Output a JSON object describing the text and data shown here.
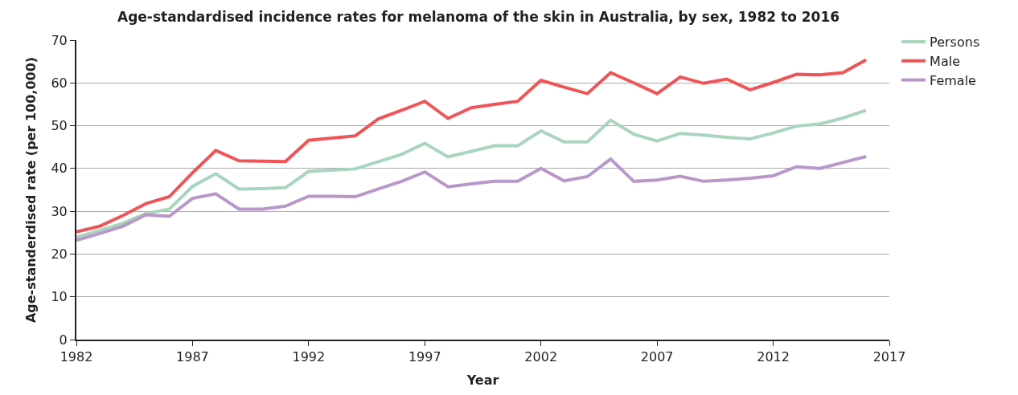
{
  "chart_data": {
    "type": "line",
    "title": "Age-standardised incidence rates for melanoma of the skin in Australia, by sex, 1982 to 2016",
    "xlabel": "Year",
    "ylabel": "Age-standerdised rate (per 100,000)",
    "x": [
      1982,
      1983,
      1984,
      1985,
      1986,
      1987,
      1988,
      1989,
      1990,
      1991,
      1992,
      1993,
      1994,
      1995,
      1996,
      1997,
      1998,
      1999,
      2000,
      2001,
      2002,
      2003,
      2004,
      2005,
      2006,
      2007,
      2008,
      2009,
      2010,
      2011,
      2012,
      2013,
      2014,
      2015,
      2016
    ],
    "series": [
      {
        "name": "Persons",
        "color": "#a8d5bd",
        "values": [
          23.9,
          25.5,
          27.2,
          29.5,
          30.5,
          35.8,
          38.8,
          35.2,
          35.3,
          35.5,
          39.3,
          39.6,
          39.9,
          41.6,
          43.3,
          45.9,
          42.7,
          44,
          45.3,
          45.3,
          48.8,
          46.2,
          46.2,
          51.3,
          48,
          46.4,
          48.2,
          47.8,
          47.3,
          46.9,
          48.3,
          49.9,
          50.4,
          51.8,
          53.6
        ]
      },
      {
        "name": "Male",
        "color": "#ef5456",
        "values": [
          25.2,
          26.5,
          29,
          31.8,
          33.4,
          39,
          44.2,
          41.8,
          41.7,
          41.6,
          46.6,
          47.1,
          47.6,
          51.6,
          53.6,
          55.7,
          51.7,
          54.2,
          55,
          55.7,
          60.6,
          59,
          57.5,
          62.4,
          60,
          57.5,
          61.4,
          59.9,
          60.9,
          58.4,
          60.1,
          62,
          61.9,
          62.4,
          65.4
        ]
      },
      {
        "name": "Female",
        "color": "#b897c9",
        "values": [
          23.2,
          24.8,
          26.5,
          29.2,
          28.8,
          33,
          34.1,
          30.5,
          30.5,
          31.2,
          33.5,
          33.5,
          33.4,
          35.2,
          37,
          39.2,
          35.7,
          36.4,
          37,
          37,
          40,
          37.1,
          38.1,
          42.2,
          37,
          37.3,
          38.2,
          37,
          37.3,
          37.7,
          38.3,
          40.4,
          40,
          41.4,
          42.8
        ]
      }
    ],
    "xlim": [
      1982,
      2017
    ],
    "xticks": [
      1982,
      1987,
      1992,
      1997,
      2002,
      2007,
      2012,
      2017
    ],
    "ylim": [
      0,
      70
    ],
    "yticks": [
      0,
      10,
      20,
      30,
      40,
      50,
      60,
      70
    ],
    "grid": "y",
    "legend": "top right",
    "marker": "none",
    "line_style": "solid"
  }
}
